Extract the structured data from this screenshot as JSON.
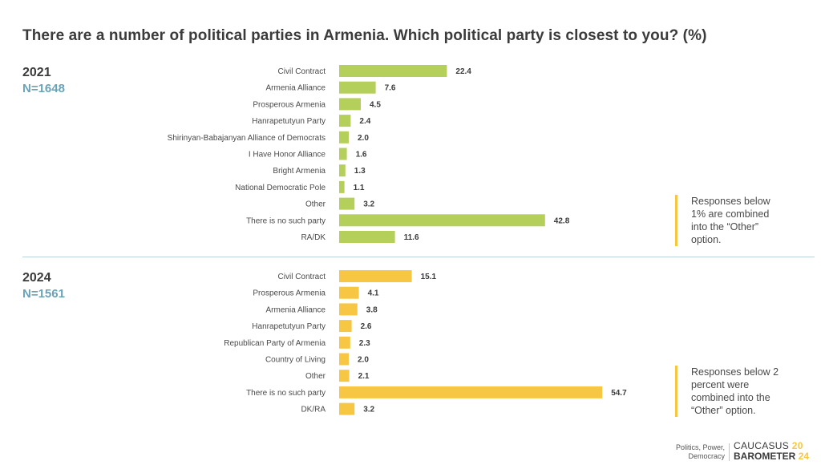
{
  "title": "There are a number of political parties in Armenia. Which political party is closest to you? (%)",
  "chart_data": [
    {
      "type": "bar",
      "orientation": "horizontal",
      "year_label": "2021",
      "n_label": "N=1648",
      "color": "#b5cf5b",
      "categories": [
        "Civil Contract",
        "Armenia Alliance",
        "Prosperous Armenia",
        "Hanrapetutyun Party",
        "Shirinyan-Babajanyan Alliance of Democrats",
        "I Have Honor Alliance",
        "Bright Armenia",
        "National Democratic Pole",
        "Other",
        "There is no such party",
        "RA/DK"
      ],
      "values": [
        22.4,
        7.6,
        4.5,
        2.4,
        2.0,
        1.6,
        1.3,
        1.1,
        3.2,
        42.8,
        11.6
      ],
      "value_labels": [
        "22.4",
        "7.6",
        "4.5",
        "2.4",
        "2.0",
        "1.6",
        "1.3",
        "1.1",
        "3.2",
        "42.8",
        "11.6"
      ],
      "note": "Responses below 1% are combined into the “Other” option."
    },
    {
      "type": "bar",
      "orientation": "horizontal",
      "year_label": "2024",
      "n_label": "N=1561",
      "color": "#f7c744",
      "categories": [
        "Civil Contract",
        "Prosperous Armenia",
        "Armenia Alliance",
        "Hanrapetutyun Party",
        "Republican Party of Armenia",
        "Country of Living",
        "Other",
        "There is no such party",
        "DK/RA"
      ],
      "values": [
        15.1,
        4.1,
        3.8,
        2.6,
        2.3,
        2.0,
        2.1,
        54.7,
        3.2
      ],
      "value_labels": [
        "15.1",
        "4.1",
        "3.8",
        "2.6",
        "2.3",
        "2.0",
        "2.1",
        "54.7",
        "3.2"
      ],
      "note": "Responses below 2 percent were combined into the “Other” option."
    }
  ],
  "footer": {
    "tagline_line1": "Politics, Power,",
    "tagline_line2": "Democracy",
    "logo_line1": "CAUCASUS",
    "logo_line2": "BAROMETER",
    "logo_year_top": "20",
    "logo_year_bottom": "24"
  }
}
